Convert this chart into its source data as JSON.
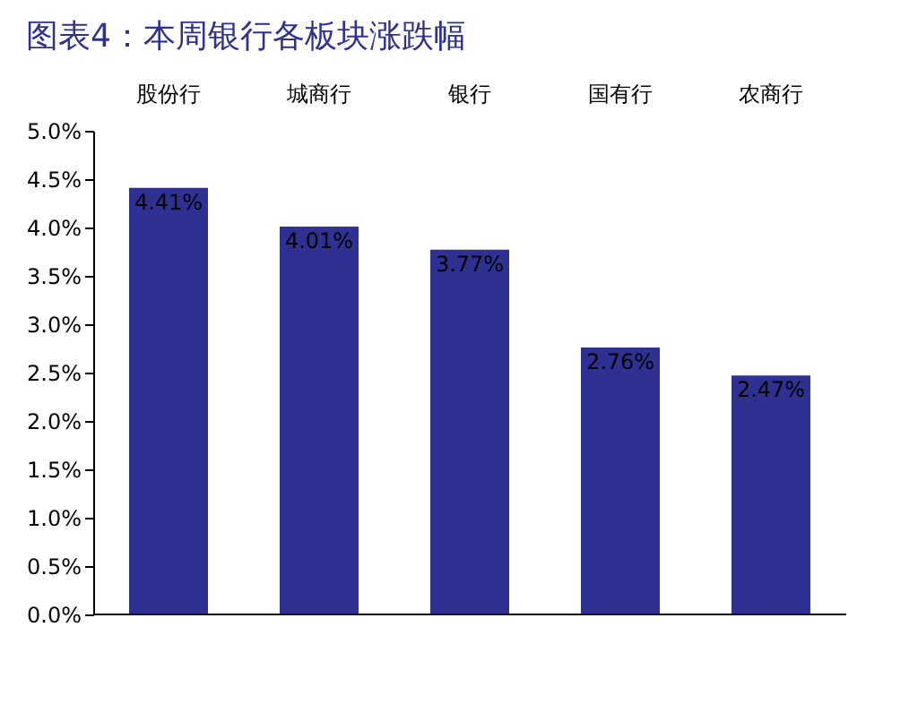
{
  "chart_data": {
    "type": "bar",
    "title": "图表4：本周银行各板块涨跌幅",
    "categories": [
      "股份行",
      "城商行",
      "银行",
      "国有行",
      "农商行"
    ],
    "values": [
      4.41,
      4.01,
      3.77,
      2.76,
      2.47
    ],
    "value_labels": [
      "4.41%",
      "4.01%",
      "3.77%",
      "2.76%",
      "2.47%"
    ],
    "color": "#2e3192",
    "ylim": [
      0,
      5
    ],
    "yticks": [
      {
        "value": 0,
        "label": "0.0%"
      },
      {
        "value": 0.5,
        "label": "0.5%"
      },
      {
        "value": 1,
        "label": "1.0%"
      },
      {
        "value": 1.5,
        "label": "1.5%"
      },
      {
        "value": 2,
        "label": "2.0%"
      },
      {
        "value": 2.5,
        "label": "2.5%"
      },
      {
        "value": 3,
        "label": "3.0%"
      },
      {
        "value": 3.5,
        "label": "3.5%"
      },
      {
        "value": 4,
        "label": "4.0%"
      },
      {
        "value": 4.5,
        "label": "4.5%"
      },
      {
        "value": 5,
        "label": "5.0%"
      }
    ],
    "grid": false
  }
}
